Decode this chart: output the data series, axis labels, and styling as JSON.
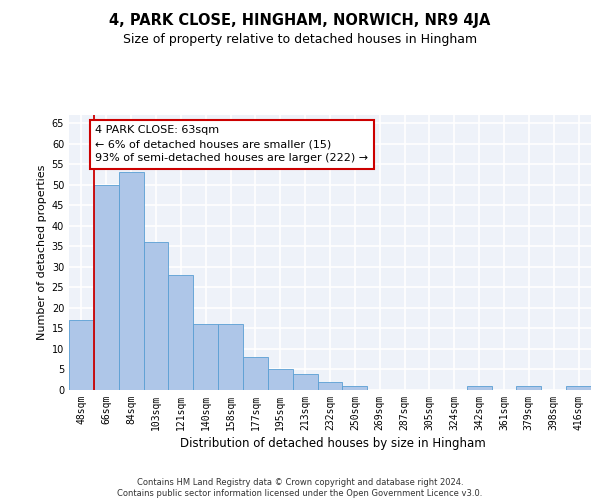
{
  "title": "4, PARK CLOSE, HINGHAM, NORWICH, NR9 4JA",
  "subtitle": "Size of property relative to detached houses in Hingham",
  "xlabel": "Distribution of detached houses by size in Hingham",
  "ylabel": "Number of detached properties",
  "categories": [
    "48sqm",
    "66sqm",
    "84sqm",
    "103sqm",
    "121sqm",
    "140sqm",
    "158sqm",
    "177sqm",
    "195sqm",
    "213sqm",
    "232sqm",
    "250sqm",
    "269sqm",
    "287sqm",
    "305sqm",
    "324sqm",
    "342sqm",
    "361sqm",
    "379sqm",
    "398sqm",
    "416sqm"
  ],
  "values": [
    17,
    50,
    53,
    36,
    28,
    16,
    16,
    8,
    5,
    4,
    2,
    1,
    0,
    0,
    0,
    0,
    1,
    0,
    1,
    0,
    1
  ],
  "bar_color": "#aec6e8",
  "bar_edge_color": "#5a9fd4",
  "highlight_line_color": "#cc0000",
  "annotation_text": "4 PARK CLOSE: 63sqm\n← 6% of detached houses are smaller (15)\n93% of semi-detached houses are larger (222) →",
  "annotation_box_color": "#ffffff",
  "annotation_box_edge_color": "#cc0000",
  "ylim": [
    0,
    67
  ],
  "yticks": [
    0,
    5,
    10,
    15,
    20,
    25,
    30,
    35,
    40,
    45,
    50,
    55,
    60,
    65
  ],
  "background_color": "#eef2f9",
  "grid_color": "#ffffff",
  "footer": "Contains HM Land Registry data © Crown copyright and database right 2024.\nContains public sector information licensed under the Open Government Licence v3.0.",
  "title_fontsize": 10.5,
  "subtitle_fontsize": 9,
  "xlabel_fontsize": 8.5,
  "ylabel_fontsize": 8,
  "tick_fontsize": 7,
  "annotation_fontsize": 8,
  "footer_fontsize": 6
}
